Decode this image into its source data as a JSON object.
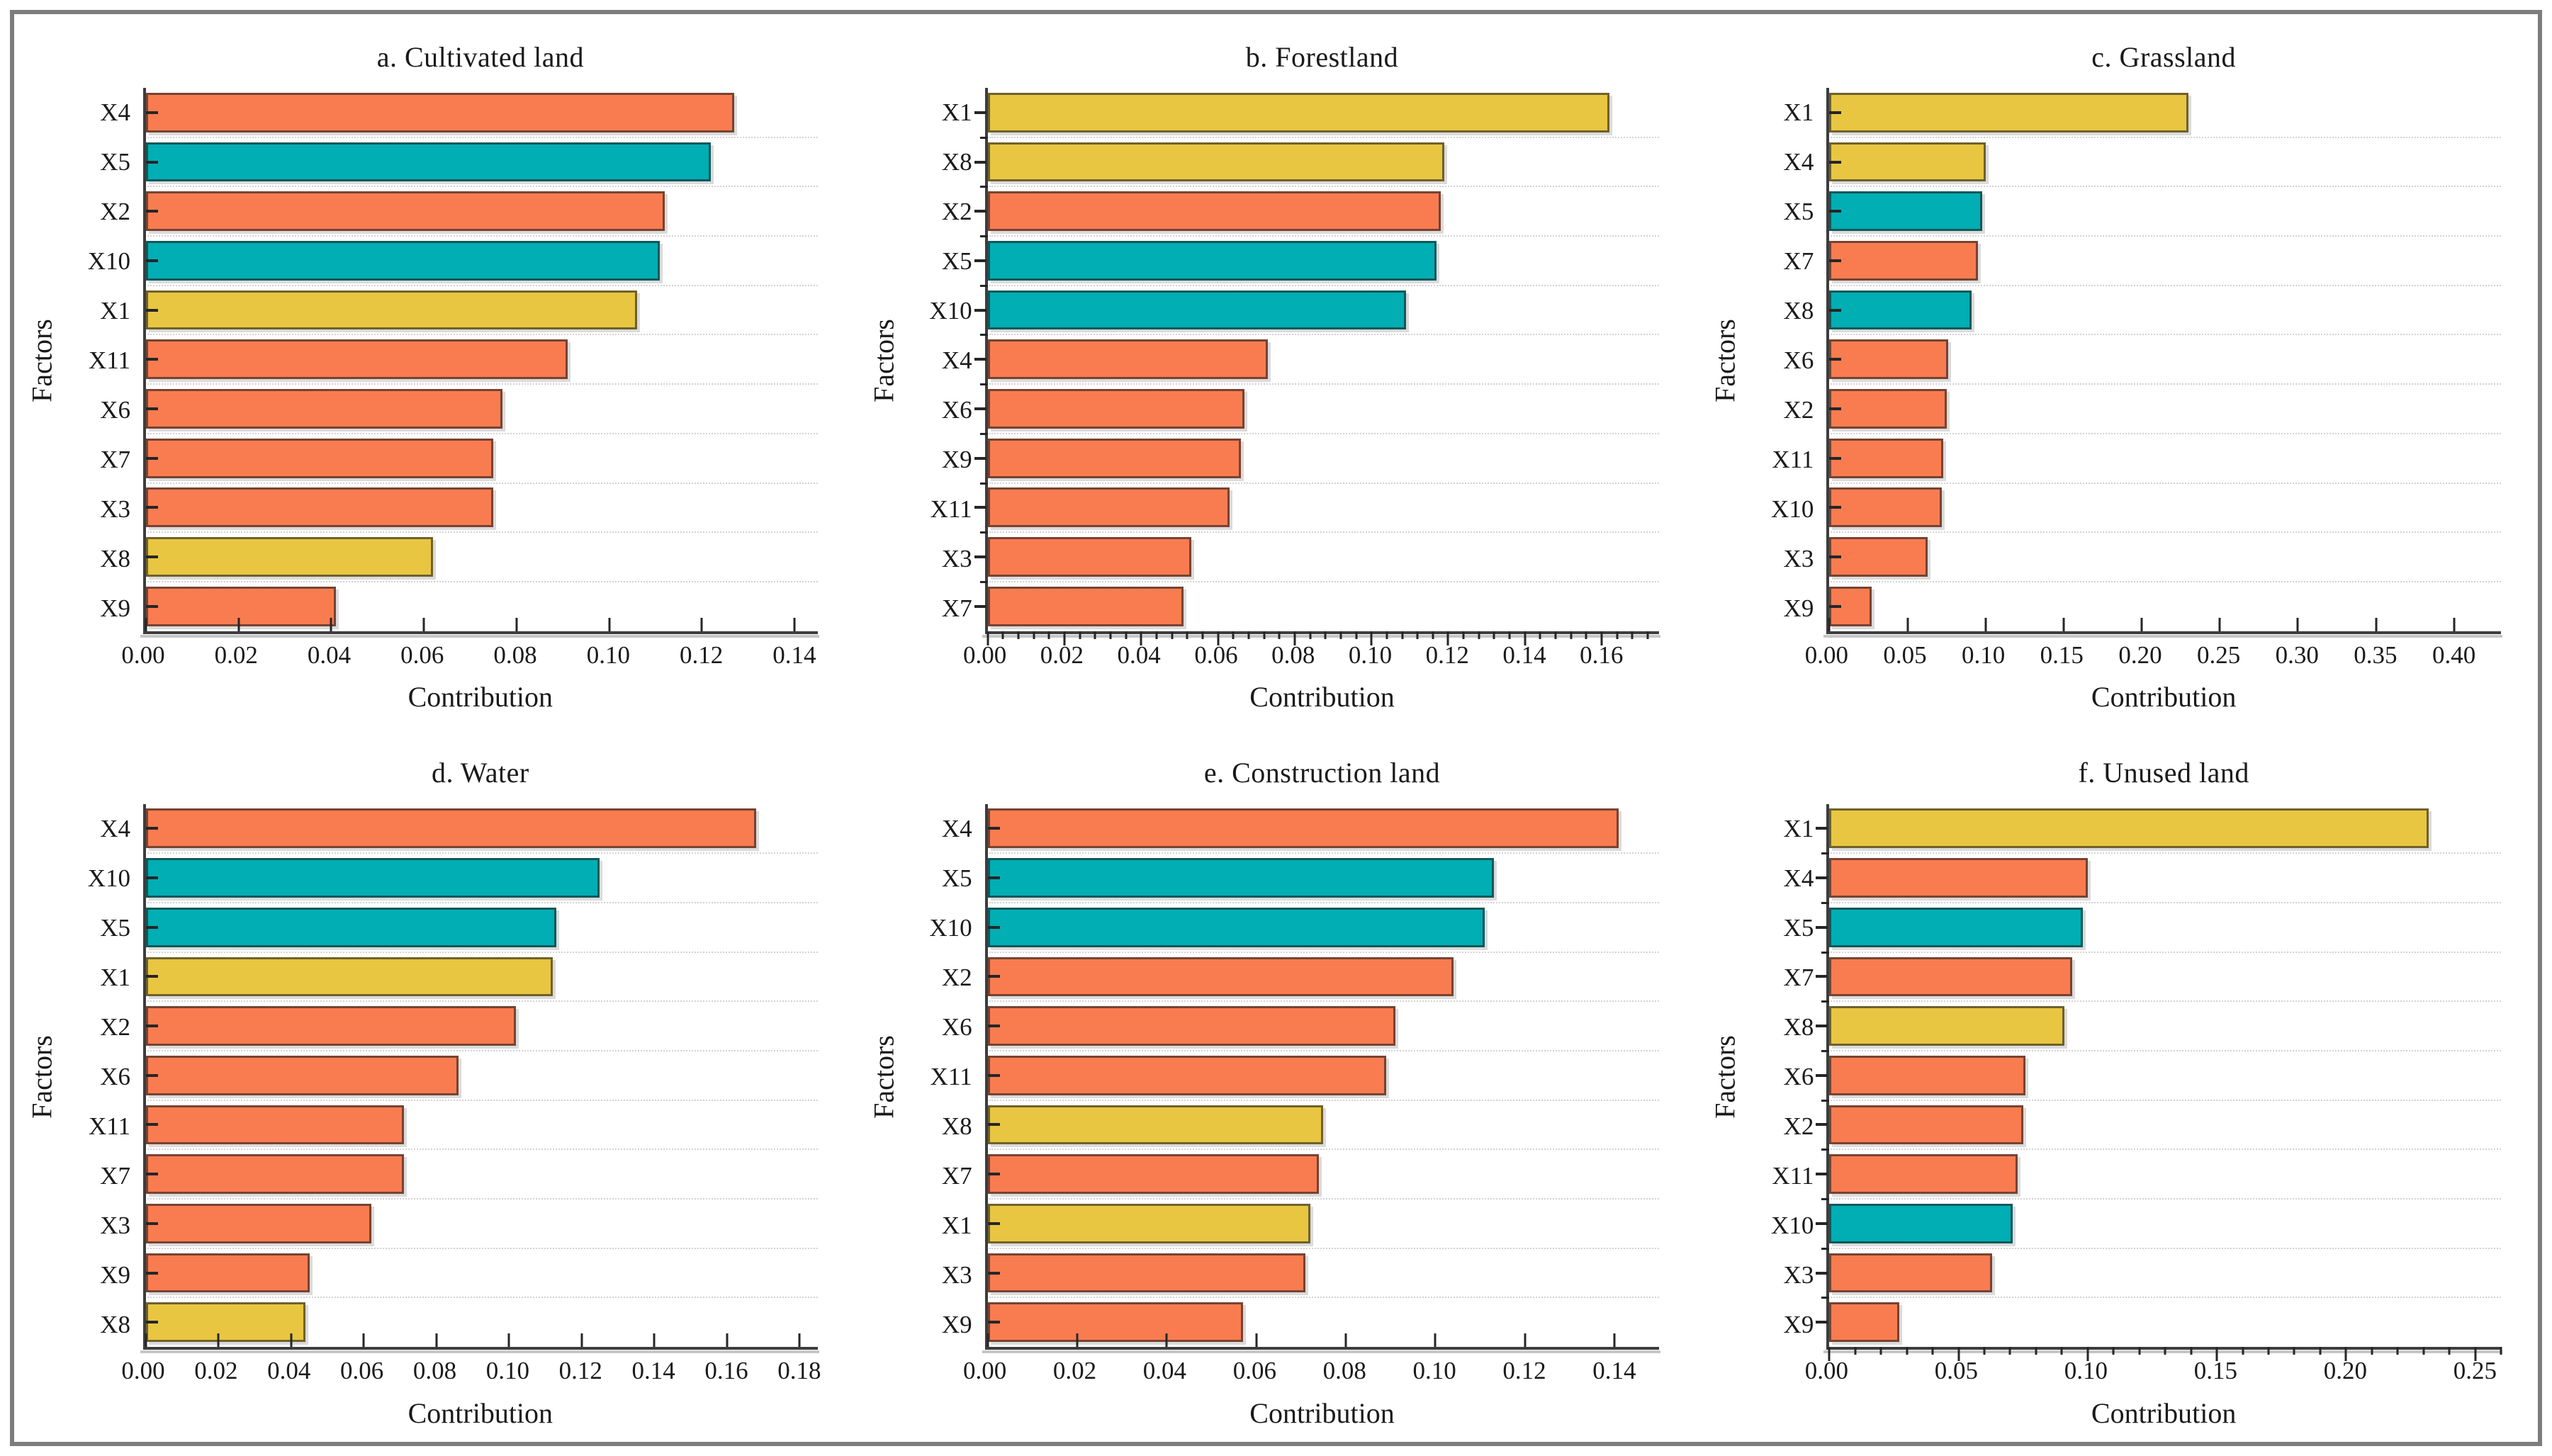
{
  "figure": {
    "description": "Factor contribution bar charts for six land use types",
    "frame_color": "#7d7d7d",
    "axis_color": "#3d3d3d",
    "grid_color": "#d2d2d2"
  },
  "palette": {
    "orange": "#F97C50",
    "teal": "#00AEB3",
    "yellow": "#E8C641"
  },
  "chart_data": [
    {
      "id": "a",
      "type": "bar",
      "orientation": "horizontal",
      "title": "a. Cultivated land",
      "xlabel": "Contribution",
      "ylabel": "Factors",
      "categories": [
        "X4",
        "X5",
        "X2",
        "X10",
        "X1",
        "X11",
        "X6",
        "X7",
        "X3",
        "X8",
        "X9"
      ],
      "values": [
        0.127,
        0.122,
        0.112,
        0.111,
        0.106,
        0.091,
        0.077,
        0.075,
        0.075,
        0.062,
        0.041
      ],
      "bar_colors": [
        "orange",
        "teal",
        "orange",
        "teal",
        "yellow",
        "orange",
        "orange",
        "orange",
        "orange",
        "yellow",
        "orange"
      ],
      "xlim": [
        0,
        0.145
      ],
      "xtick_step": 0.02,
      "xtick_values": [
        0,
        0.02,
        0.04,
        0.06,
        0.08,
        0.1,
        0.12,
        0.14
      ],
      "xticks": [
        "0.00",
        "0.02",
        "0.04",
        "0.06",
        "0.08",
        "0.10",
        "0.12",
        "0.14"
      ],
      "tick_direction": "in",
      "minor_ticks": false,
      "grid": "horizontal-dotted",
      "legend": "none"
    },
    {
      "id": "b",
      "type": "bar",
      "orientation": "horizontal",
      "title": "b. Forestland",
      "xlabel": "Contribution",
      "ylabel": "Factors",
      "categories": [
        "X1",
        "X8",
        "X2",
        "X5",
        "X10",
        "X4",
        "X6",
        "X9",
        "X11",
        "X3",
        "X7"
      ],
      "values": [
        0.162,
        0.119,
        0.118,
        0.117,
        0.109,
        0.073,
        0.067,
        0.066,
        0.063,
        0.053,
        0.051
      ],
      "bar_colors": [
        "yellow",
        "yellow",
        "orange",
        "teal",
        "teal",
        "orange",
        "orange",
        "orange",
        "orange",
        "orange",
        "orange"
      ],
      "xlim": [
        0,
        0.175
      ],
      "xtick_step": 0.02,
      "xtick_values": [
        0,
        0.02,
        0.04,
        0.06,
        0.08,
        0.1,
        0.12,
        0.14,
        0.16
      ],
      "xticks": [
        "0.00",
        "0.02",
        "0.04",
        "0.06",
        "0.08",
        "0.10",
        "0.12",
        "0.14",
        "0.16"
      ],
      "tick_direction": "out",
      "minor_ticks": true,
      "grid": "horizontal-dotted",
      "legend": "none"
    },
    {
      "id": "c",
      "type": "bar",
      "orientation": "horizontal",
      "title": "c. Grassland",
      "xlabel": "Contribution",
      "ylabel": "Factors",
      "categories": [
        "X1",
        "X4",
        "X5",
        "X7",
        "X8",
        "X6",
        "X2",
        "X11",
        "X10",
        "X3",
        "X9"
      ],
      "values": [
        0.23,
        0.1,
        0.098,
        0.095,
        0.091,
        0.076,
        0.075,
        0.073,
        0.072,
        0.063,
        0.027
      ],
      "bar_colors": [
        "yellow",
        "yellow",
        "teal",
        "orange",
        "teal",
        "orange",
        "orange",
        "orange",
        "orange",
        "orange",
        "orange"
      ],
      "xlim": [
        0,
        0.43
      ],
      "xtick_step": 0.05,
      "xtick_values": [
        0,
        0.05,
        0.1,
        0.15,
        0.2,
        0.25,
        0.3,
        0.35,
        0.4
      ],
      "xticks": [
        "0.00",
        "0.05",
        "0.10",
        "0.15",
        "0.20",
        "0.25",
        "0.30",
        "0.35",
        "0.40"
      ],
      "tick_direction": "in",
      "minor_ticks": false,
      "grid": "horizontal-dotted",
      "legend": "none"
    },
    {
      "id": "d",
      "type": "bar",
      "orientation": "horizontal",
      "title": "d. Water",
      "xlabel": "Contribution",
      "ylabel": "Factors",
      "categories": [
        "X4",
        "X10",
        "X5",
        "X1",
        "X2",
        "X6",
        "X11",
        "X7",
        "X3",
        "X9",
        "X8"
      ],
      "values": [
        0.168,
        0.125,
        0.113,
        0.112,
        0.102,
        0.086,
        0.071,
        0.071,
        0.062,
        0.045,
        0.044
      ],
      "bar_colors": [
        "orange",
        "teal",
        "teal",
        "yellow",
        "orange",
        "orange",
        "orange",
        "orange",
        "orange",
        "orange",
        "yellow"
      ],
      "xlim": [
        0,
        0.185
      ],
      "xtick_step": 0.02,
      "xtick_values": [
        0,
        0.02,
        0.04,
        0.06,
        0.08,
        0.1,
        0.12,
        0.14,
        0.16,
        0.18
      ],
      "xticks": [
        "0.00",
        "0.02",
        "0.04",
        "0.06",
        "0.08",
        "0.10",
        "0.12",
        "0.14",
        "0.16",
        "0.18"
      ],
      "tick_direction": "in",
      "minor_ticks": false,
      "grid": "horizontal-dotted",
      "legend": "none"
    },
    {
      "id": "e",
      "type": "bar",
      "orientation": "horizontal",
      "title": "e. Construction land",
      "xlabel": "Contribution",
      "ylabel": "Factors",
      "categories": [
        "X4",
        "X5",
        "X10",
        "X2",
        "X6",
        "X11",
        "X8",
        "X7",
        "X1",
        "X3",
        "X9"
      ],
      "values": [
        0.141,
        0.113,
        0.111,
        0.104,
        0.091,
        0.089,
        0.075,
        0.074,
        0.072,
        0.071,
        0.057
      ],
      "bar_colors": [
        "orange",
        "teal",
        "teal",
        "orange",
        "orange",
        "orange",
        "yellow",
        "orange",
        "yellow",
        "orange",
        "orange"
      ],
      "xlim": [
        0,
        0.15
      ],
      "xtick_step": 0.02,
      "xtick_values": [
        0,
        0.02,
        0.04,
        0.06,
        0.08,
        0.1,
        0.12,
        0.14
      ],
      "xticks": [
        "0.00",
        "0.02",
        "0.04",
        "0.06",
        "0.08",
        "0.10",
        "0.12",
        "0.14"
      ],
      "tick_direction": "in",
      "minor_ticks": false,
      "grid": "horizontal-dotted",
      "legend": "none"
    },
    {
      "id": "f",
      "type": "bar",
      "orientation": "horizontal",
      "title": "f. Unused land",
      "xlabel": "Contribution",
      "ylabel": "Factors",
      "categories": [
        "X1",
        "X4",
        "X5",
        "X7",
        "X8",
        "X6",
        "X2",
        "X11",
        "X10",
        "X3",
        "X9"
      ],
      "values": [
        0.232,
        0.1,
        0.098,
        0.094,
        0.091,
        0.076,
        0.075,
        0.073,
        0.071,
        0.063,
        0.027
      ],
      "bar_colors": [
        "yellow",
        "orange",
        "teal",
        "orange",
        "yellow",
        "orange",
        "orange",
        "orange",
        "teal",
        "orange",
        "orange"
      ],
      "xlim": [
        0,
        0.26
      ],
      "xtick_step": 0.05,
      "xtick_values": [
        0,
        0.05,
        0.1,
        0.15,
        0.2,
        0.25
      ],
      "xticks": [
        "0.00",
        "0.05",
        "0.10",
        "0.15",
        "0.20",
        "0.25"
      ],
      "tick_direction": "out",
      "minor_ticks": true,
      "grid": "horizontal-dotted",
      "legend": "none"
    }
  ]
}
